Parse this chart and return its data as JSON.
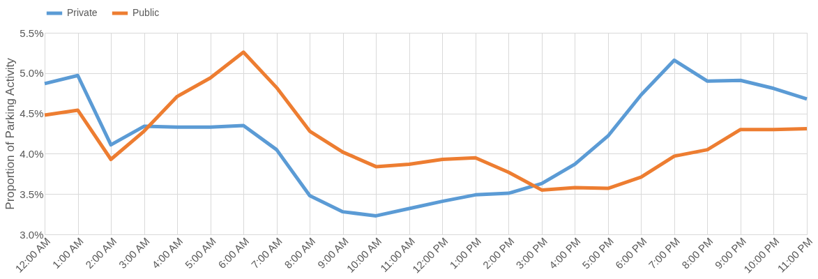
{
  "chart_data": {
    "type": "line",
    "ylabel": "Proportion of Parking Activity",
    "categories": [
      "12:00 AM",
      "1:00 AM",
      "2:00 AM",
      "3:00 AM",
      "4:00 AM",
      "5:00 AM",
      "6:00 AM",
      "7:00 AM",
      "8:00 AM",
      "9:00 AM",
      "10:00 AM",
      "11:00 AM",
      "12:00 PM",
      "1:00 PM",
      "2:00 PM",
      "3:00 PM",
      "4:00 PM",
      "5:00 PM",
      "6:00 PM",
      "7:00 PM",
      "8:00 PM",
      "9:00 PM",
      "10:00 PM",
      "11:00 PM"
    ],
    "series": [
      {
        "name": "Private",
        "color": "#5b9bd5",
        "values": [
          4.87,
          4.97,
          4.11,
          4.34,
          4.33,
          4.33,
          4.35,
          4.05,
          3.48,
          3.28,
          3.23,
          3.32,
          3.41,
          3.49,
          3.51,
          3.63,
          3.87,
          4.22,
          4.73,
          5.16,
          4.9,
          4.91,
          4.81,
          4.68
        ]
      },
      {
        "name": "Public",
        "color": "#ed7d31",
        "values": [
          4.48,
          4.54,
          3.93,
          4.28,
          4.71,
          4.94,
          5.26,
          4.82,
          4.28,
          4.02,
          3.84,
          3.87,
          3.93,
          3.95,
          3.77,
          3.55,
          3.58,
          3.57,
          3.71,
          3.97,
          4.05,
          4.3,
          4.3,
          4.31
        ]
      }
    ],
    "ylim": [
      3.0,
      5.5
    ],
    "yticks": [
      {
        "value": 3.0,
        "label": "3.0%"
      },
      {
        "value": 3.5,
        "label": "3.5%"
      },
      {
        "value": 4.0,
        "label": "4.0%"
      },
      {
        "value": 4.5,
        "label": "4.5%"
      },
      {
        "value": 5.0,
        "label": "5.0%"
      },
      {
        "value": 5.5,
        "label": "5.5%"
      }
    ],
    "grid": true,
    "legend": "top",
    "marker": "none",
    "line_style": "solid"
  }
}
